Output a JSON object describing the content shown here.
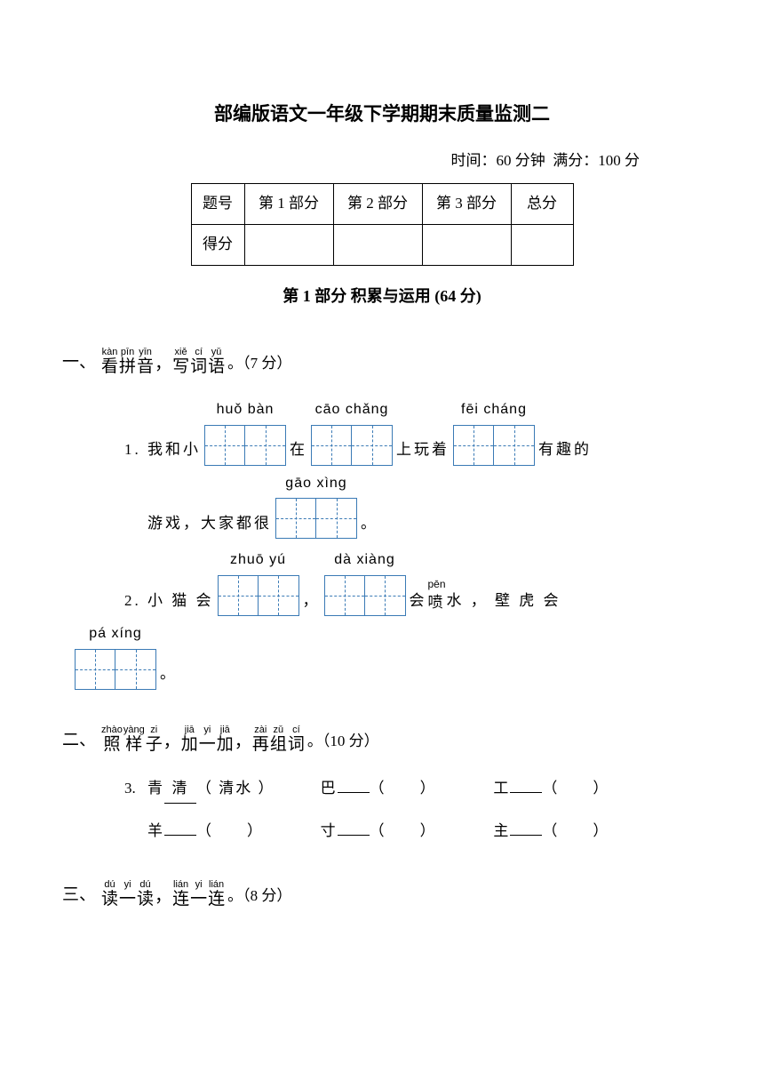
{
  "title": "部编版语文一年级下学期期末质量监测二",
  "subtitle_time_label": "时间：",
  "subtitle_time_value": "60 分钟",
  "subtitle_score_label": "满分：",
  "subtitle_score_value": "100 分",
  "score_table": {
    "row1": [
      "题号",
      "第 1 部分",
      "第 2 部分",
      "第 3 部分",
      "总分"
    ],
    "row2_label": "得分"
  },
  "section1_header": "第 1 部分 积累与运用 (64 分)",
  "q1": {
    "num": "一、",
    "ruby": [
      {
        "py": "kàn",
        "ch": "看"
      },
      {
        "py": "pīn",
        "ch": "拼"
      },
      {
        "py": "yīn",
        "ch": "音"
      },
      {
        "py": "",
        "ch": "，"
      },
      {
        "py": "xiě",
        "ch": "写"
      },
      {
        "py": "cí",
        "ch": "词"
      },
      {
        "py": "yǔ",
        "ch": "语"
      }
    ],
    "points": "。（7 分）",
    "item1": {
      "num": "1.",
      "seg1": "我和小",
      "box1_py": "huǒ   bàn",
      "seg2": "在",
      "box2_py": "cāo  chǎng",
      "seg3": "上玩着",
      "box3_py": "fēi  cháng",
      "seg4": "有趣的",
      "seg5": "游戏，大家都很",
      "box4_py": "gāo   xìng",
      "seg6": "。"
    },
    "item2": {
      "num": "2.",
      "seg1": "小 猫 会",
      "box1_py": "zhuō  yú",
      "seg2": "，",
      "box2_py": "dà   xiàng",
      "seg3": "会",
      "pen_py": "pēn",
      "pen_ch": "喷",
      "seg4": "水 ， 壁 虎 会",
      "box3_py": "pá   xíng",
      "seg5": "。"
    }
  },
  "q2": {
    "num": "二、",
    "ruby": [
      {
        "py": "zhào",
        "ch": "照"
      },
      {
        "py": "yàng",
        "ch": "样"
      },
      {
        "py": "zi",
        "ch": "子"
      },
      {
        "py": "",
        "ch": "，"
      },
      {
        "py": "jiā",
        "ch": "加"
      },
      {
        "py": "yi",
        "ch": "一"
      },
      {
        "py": "jiā",
        "ch": "加"
      },
      {
        "py": "",
        "ch": "，"
      },
      {
        "py": "zài",
        "ch": "再"
      },
      {
        "py": "zǔ",
        "ch": "组"
      },
      {
        "py": "cí",
        "ch": "词"
      }
    ],
    "points": "。（10 分）",
    "item3": {
      "num": "3.",
      "cells": [
        {
          "base": "青",
          "fill": "清",
          "word": "清水"
        },
        {
          "base": "巴",
          "fill": "",
          "word": ""
        },
        {
          "base": "工",
          "fill": "",
          "word": ""
        },
        {
          "base": "羊",
          "fill": "",
          "word": ""
        },
        {
          "base": "寸",
          "fill": "",
          "word": ""
        },
        {
          "base": "主",
          "fill": "",
          "word": ""
        }
      ]
    }
  },
  "q3": {
    "num": "三、",
    "ruby": [
      {
        "py": "dú",
        "ch": "读"
      },
      {
        "py": "yi",
        "ch": "一"
      },
      {
        "py": "dú",
        "ch": "读"
      },
      {
        "py": "",
        "ch": "，"
      },
      {
        "py": "lián",
        "ch": "连"
      },
      {
        "py": "yi",
        "ch": "一"
      },
      {
        "py": "lián",
        "ch": "连"
      }
    ],
    "points": "。（8 分）"
  }
}
